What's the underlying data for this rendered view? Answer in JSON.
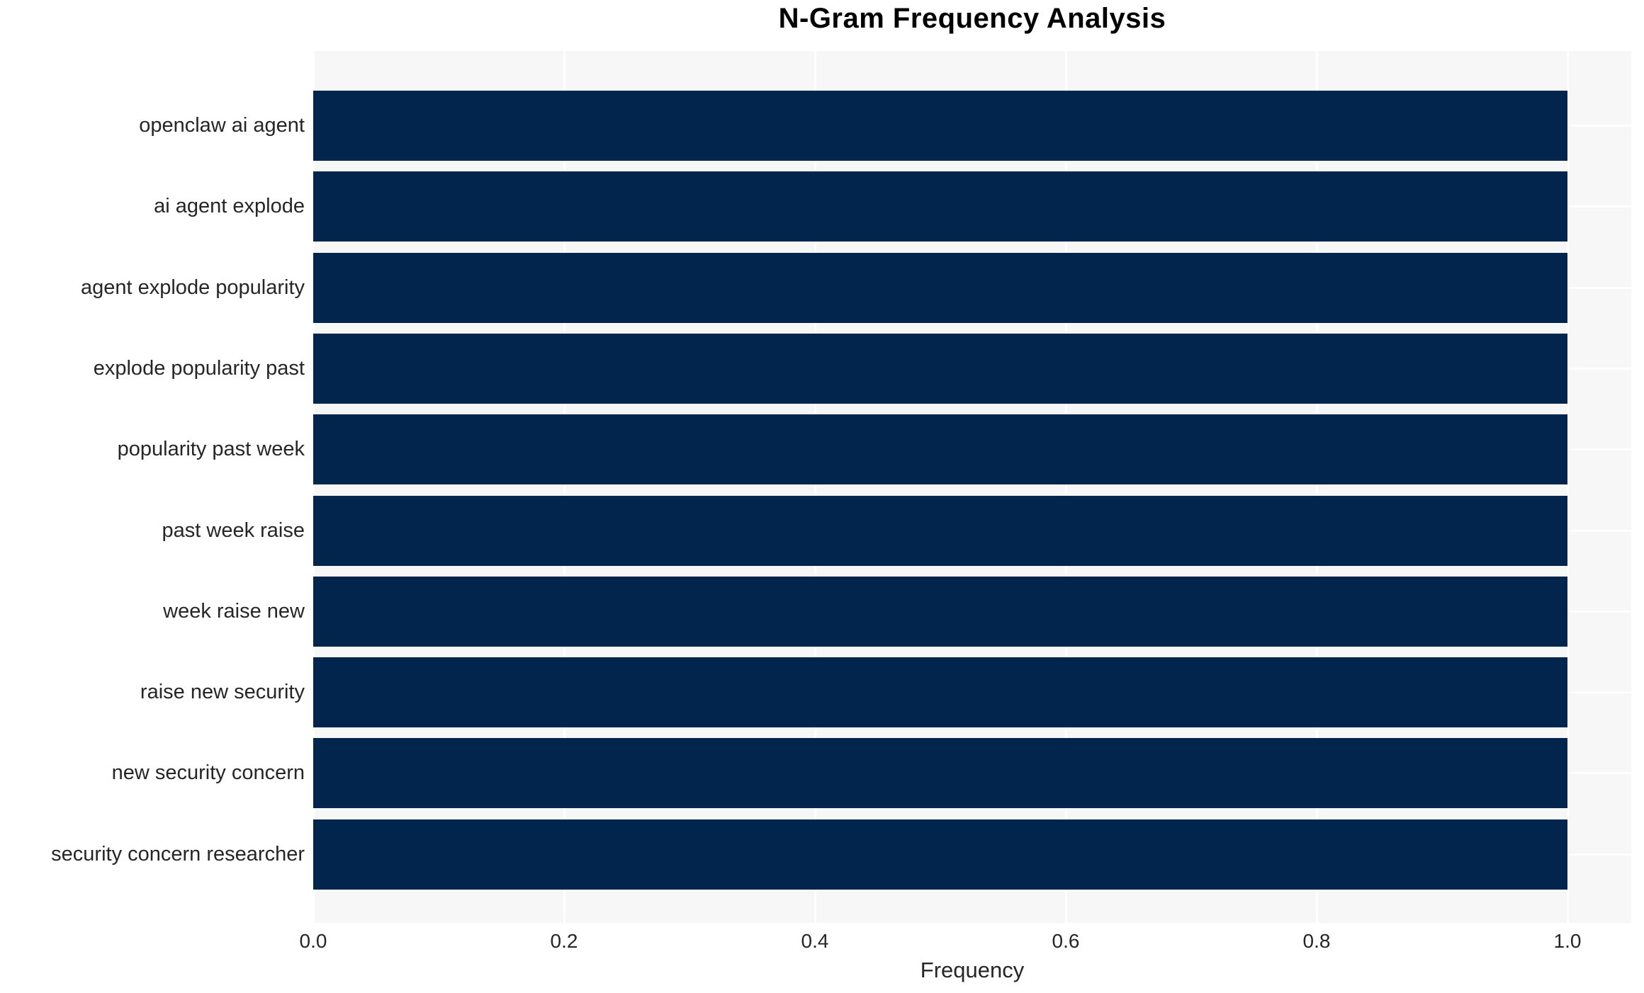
{
  "chart_data": {
    "type": "bar",
    "orientation": "horizontal",
    "title": "N-Gram Frequency Analysis",
    "xlabel": "Frequency",
    "ylabel": "",
    "categories": [
      "openclaw ai agent",
      "ai agent explode",
      "agent explode popularity",
      "explode popularity past",
      "popularity past week",
      "past week raise",
      "week raise new",
      "raise new security",
      "new security concern",
      "security concern researcher"
    ],
    "values": [
      1.0,
      1.0,
      1.0,
      1.0,
      1.0,
      1.0,
      1.0,
      1.0,
      1.0,
      1.0
    ],
    "xlim": [
      0.0,
      1.05
    ],
    "xticks": [
      0.0,
      0.2,
      0.4,
      0.6,
      0.8,
      1.0
    ],
    "xtick_labels": [
      "0.0",
      "0.2",
      "0.4",
      "0.6",
      "0.8",
      "1.0"
    ],
    "grid": true,
    "legend": false,
    "colors": {
      "bar": "#02254d",
      "plot_background": "#f7f7f7",
      "gridline": "#ffffff",
      "tick_text": "#262626",
      "title_text": "#000000"
    }
  }
}
